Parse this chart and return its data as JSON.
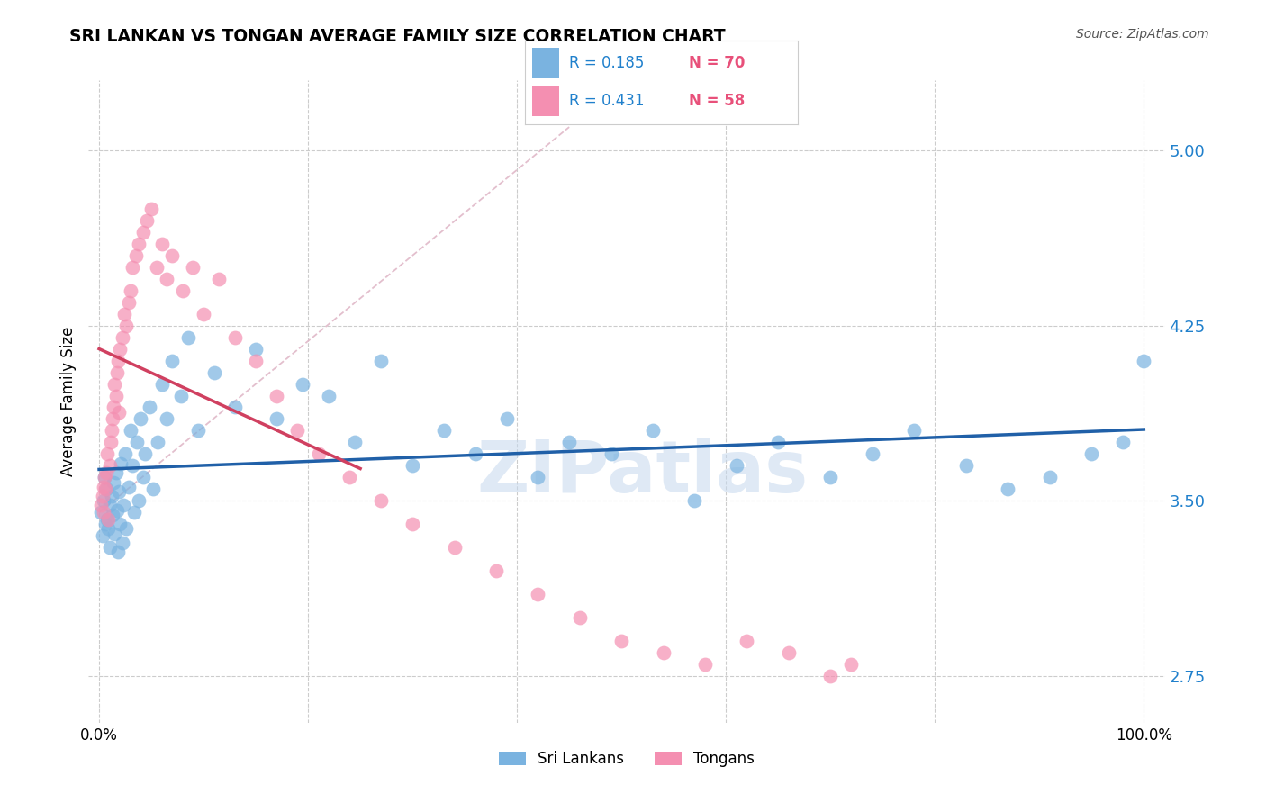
{
  "title": "SRI LANKAN VS TONGAN AVERAGE FAMILY SIZE CORRELATION CHART",
  "source": "Source: ZipAtlas.com",
  "ylabel": "Average Family Size",
  "yticks": [
    2.75,
    3.5,
    4.25,
    5.0
  ],
  "ylim": [
    2.55,
    5.3
  ],
  "xlim": [
    -0.01,
    1.02
  ],
  "sri_color": "#7ab3e0",
  "ton_color": "#f48fb1",
  "sri_line_color": "#2060a8",
  "ton_line_color": "#d04060",
  "diagonal_color": "#e0b8c8",
  "watermark": "ZIPatlas",
  "raxis_color": "#2080cc",
  "sri_r": 0.185,
  "sri_n": 70,
  "ton_r": 0.431,
  "ton_n": 58,
  "sri_x": [
    0.002,
    0.003,
    0.004,
    0.005,
    0.006,
    0.007,
    0.008,
    0.009,
    0.01,
    0.01,
    0.012,
    0.013,
    0.014,
    0.015,
    0.016,
    0.017,
    0.018,
    0.019,
    0.02,
    0.021,
    0.022,
    0.023,
    0.025,
    0.026,
    0.028,
    0.03,
    0.032,
    0.034,
    0.036,
    0.038,
    0.04,
    0.042,
    0.044,
    0.048,
    0.052,
    0.056,
    0.06,
    0.065,
    0.07,
    0.078,
    0.085,
    0.095,
    0.11,
    0.13,
    0.15,
    0.17,
    0.195,
    0.22,
    0.245,
    0.27,
    0.3,
    0.33,
    0.36,
    0.39,
    0.42,
    0.45,
    0.49,
    0.53,
    0.57,
    0.61,
    0.65,
    0.7,
    0.74,
    0.78,
    0.83,
    0.87,
    0.91,
    0.95,
    0.98,
    1.0
  ],
  "sri_y": [
    3.45,
    3.35,
    3.5,
    3.6,
    3.4,
    3.55,
    3.42,
    3.38,
    3.3,
    3.48,
    3.52,
    3.44,
    3.58,
    3.36,
    3.62,
    3.46,
    3.28,
    3.54,
    3.4,
    3.66,
    3.32,
    3.48,
    3.7,
    3.38,
    3.56,
    3.8,
    3.65,
    3.45,
    3.75,
    3.5,
    3.85,
    3.6,
    3.7,
    3.9,
    3.55,
    3.75,
    4.0,
    3.85,
    4.1,
    3.95,
    4.2,
    3.8,
    4.05,
    3.9,
    4.15,
    3.85,
    4.0,
    3.95,
    3.75,
    4.1,
    3.65,
    3.8,
    3.7,
    3.85,
    3.6,
    3.75,
    3.7,
    3.8,
    3.5,
    3.65,
    3.75,
    3.6,
    3.7,
    3.8,
    3.65,
    3.55,
    3.6,
    3.7,
    3.75,
    4.1
  ],
  "ton_x": [
    0.002,
    0.003,
    0.004,
    0.004,
    0.005,
    0.006,
    0.007,
    0.008,
    0.009,
    0.01,
    0.011,
    0.012,
    0.013,
    0.014,
    0.015,
    0.016,
    0.017,
    0.018,
    0.019,
    0.02,
    0.022,
    0.024,
    0.026,
    0.028,
    0.03,
    0.032,
    0.035,
    0.038,
    0.042,
    0.046,
    0.05,
    0.055,
    0.06,
    0.065,
    0.07,
    0.08,
    0.09,
    0.1,
    0.115,
    0.13,
    0.15,
    0.17,
    0.19,
    0.21,
    0.24,
    0.27,
    0.3,
    0.34,
    0.38,
    0.42,
    0.46,
    0.5,
    0.54,
    0.58,
    0.62,
    0.66,
    0.7,
    0.72
  ],
  "ton_y": [
    3.48,
    3.52,
    3.56,
    3.45,
    3.6,
    3.55,
    3.62,
    3.7,
    3.42,
    3.65,
    3.75,
    3.8,
    3.85,
    3.9,
    4.0,
    3.95,
    4.05,
    4.1,
    3.88,
    4.15,
    4.2,
    4.3,
    4.25,
    4.35,
    4.4,
    4.5,
    4.55,
    4.6,
    4.65,
    4.7,
    4.75,
    4.5,
    4.6,
    4.45,
    4.55,
    4.4,
    4.5,
    4.3,
    4.45,
    4.2,
    4.1,
    3.95,
    3.8,
    3.7,
    3.6,
    3.5,
    3.4,
    3.3,
    3.2,
    3.1,
    3.0,
    2.9,
    2.85,
    2.8,
    2.9,
    2.85,
    2.75,
    2.8
  ]
}
